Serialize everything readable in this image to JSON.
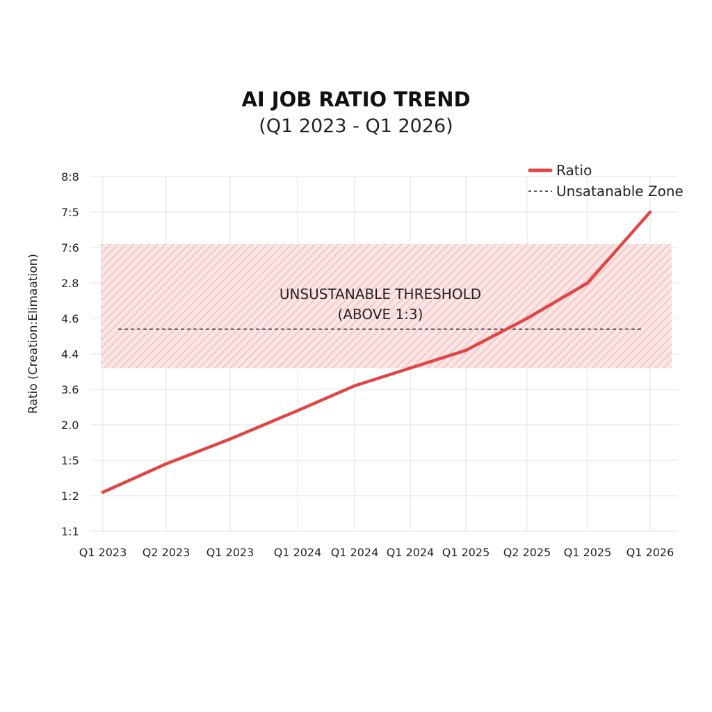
{
  "chart_data": {
    "type": "line",
    "title": "AI JOB RATIO TREND",
    "subtitle": "(Q1 2023 - Q1 2026)",
    "ylabel": "Ratio  (Creation:Elimaation)",
    "xlabel": "",
    "categories": [
      "Q1 2023",
      "Q2 2023",
      "Q1 2023",
      "Q1 2024",
      "Q1 2024",
      "Q1 2024",
      "Q1 2025",
      "Q2 2025",
      "Q1 2025",
      "Q1 2026"
    ],
    "y_tick_labels": [
      "1:1",
      "1:2",
      "1:5",
      "2.0",
      "3.6",
      "4.4",
      "4.6",
      "2.8",
      "7:6",
      "7:5",
      "8:8"
    ],
    "series": [
      {
        "name": "Ratio",
        "color": "#e04646",
        "values": [
          1.1,
          1.9,
          2.6,
          3.4,
          4.1,
          4.6,
          5.1,
          6.0,
          7.0,
          9.0
        ]
      }
    ],
    "ylim": [
      0,
      10
    ],
    "grid": true,
    "legend": {
      "placement": "top-right",
      "entries": [
        {
          "label": "Ratio",
          "style": "solid",
          "color": "#e04646"
        },
        {
          "label": "Unsatanable Zone",
          "style": "dashed",
          "color": "#222222"
        }
      ]
    },
    "annotations": {
      "zone": {
        "line1": "UNSUSTANABLE THRESHOLD",
        "line2": "(ABOVE 1:3)",
        "y_from": 4.6,
        "y_to": 8.1,
        "threshold": 5.7,
        "color": "#f6b3b3"
      }
    }
  }
}
